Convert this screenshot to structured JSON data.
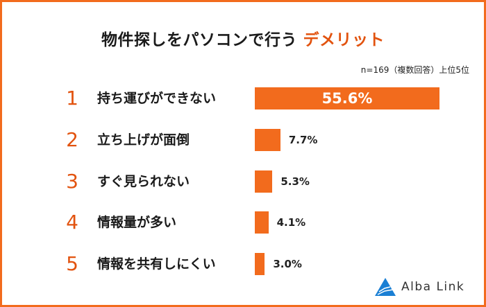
{
  "title_main": "物件探しをパソコンで行う",
  "title_accent": "デメリット",
  "note": "n=169（複数回答）上位5位",
  "colors": {
    "accent": "#f26b1d",
    "title_accent": "#e2530f"
  },
  "logo_text": "Alba Link",
  "chart_data": {
    "type": "bar",
    "orientation": "horizontal",
    "title": "物件探しをパソコンで行うデメリット",
    "ranks": [
      "1",
      "2",
      "3",
      "4",
      "5"
    ],
    "categories": [
      "持ち運びができない",
      "立ち上げが面倒",
      "すぐ見られない",
      "情報量が多い",
      "情報を共有しにくい"
    ],
    "values": [
      55.6,
      7.7,
      5.3,
      4.1,
      3.0
    ],
    "value_labels": [
      "55.6%",
      "7.7%",
      "5.3%",
      "4.1%",
      "3.0%"
    ],
    "unit": "%"
  }
}
